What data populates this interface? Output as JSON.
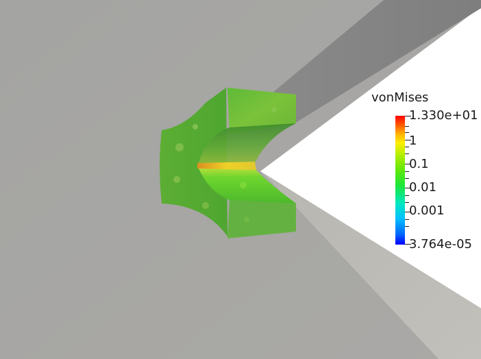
{
  "viewer": {
    "background_color": "#ffffff"
  },
  "colorbar": {
    "title": "vonMises",
    "max_label": "1.330e+01",
    "min_label": "3.764e-05",
    "tick_labels": [
      "1",
      "0.1",
      "0.01",
      "0.001"
    ],
    "scale": "log",
    "colors": {
      "low": "#0000ff",
      "mid": "#22dd22",
      "high": "#ff0000"
    }
  },
  "scene": {
    "wall_color": "#a8a8a6",
    "plate_color": "#8e8e8e",
    "lower_plate_color": "#c0beb8",
    "specimen_color": "#4aad2c",
    "crack_front_color": "#e8a020"
  }
}
